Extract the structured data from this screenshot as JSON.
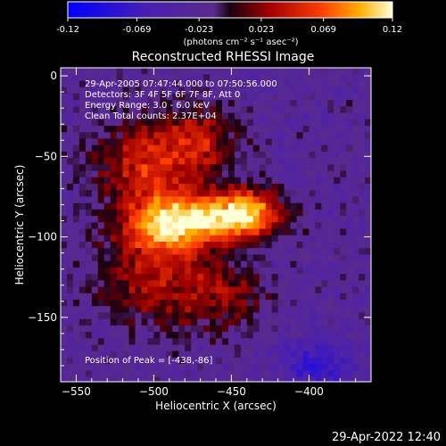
{
  "colorbar": {
    "ticks": [
      "-0.12",
      "-0.069",
      "-0.023",
      "0.023",
      "0.069",
      "0.12"
    ],
    "tick_values": [
      -0.12,
      -0.069,
      -0.023,
      0.023,
      0.069,
      0.12
    ],
    "range": [
      -0.12,
      0.12
    ],
    "unit_label": "(photons cm⁻² s⁻¹ asec⁻²)"
  },
  "chart_data": {
    "type": "heatmap",
    "title": "Reconstructed RHESSI Image",
    "xlabel": "Heliocentric X (arcsec)",
    "ylabel": "Heliocentric Y (arcsec)",
    "xlim": [
      -560,
      -360
    ],
    "ylim": [
      -190,
      5
    ],
    "xticks": [
      -550,
      -500,
      -450,
      -400
    ],
    "yticks": [
      0,
      -50,
      -100,
      -150
    ],
    "xtick_labels": [
      "−550",
      "−500",
      "−450",
      "−400"
    ],
    "ytick_labels": [
      "0",
      "−50",
      "−100",
      "−150"
    ],
    "info_lines": [
      "29-Apr-2005 07:47:44.000 to 07:50:56.000",
      "Detectors: 3F 4F 5F 6F 7F 8F, Att 0",
      "Energy Range: 3.0 - 6.0 keV",
      "Clean    Total counts: 2.37E+04"
    ],
    "peak_label": "Position of Peak = [-438,-86]",
    "peak": [
      -438,
      -86
    ],
    "sources": [
      {
        "x": -492,
        "y": -93,
        "sx": 20,
        "sy": 14,
        "amp": 0.11
      },
      {
        "x": -458,
        "y": -88,
        "sx": 22,
        "sy": 10,
        "amp": 0.09
      },
      {
        "x": -438,
        "y": -84,
        "sx": 14,
        "sy": 10,
        "amp": 0.085
      },
      {
        "x": -505,
        "y": -55,
        "sx": 22,
        "sy": 18,
        "amp": 0.07
      },
      {
        "x": -470,
        "y": -40,
        "sx": 18,
        "sy": 14,
        "amp": 0.06
      },
      {
        "x": -500,
        "y": -130,
        "sx": 26,
        "sy": 20,
        "amp": 0.05
      },
      {
        "x": -455,
        "y": -135,
        "sx": 20,
        "sy": 16,
        "amp": 0.04
      }
    ]
  },
  "footer": {
    "date": "29-Apr-2022 12:40"
  }
}
